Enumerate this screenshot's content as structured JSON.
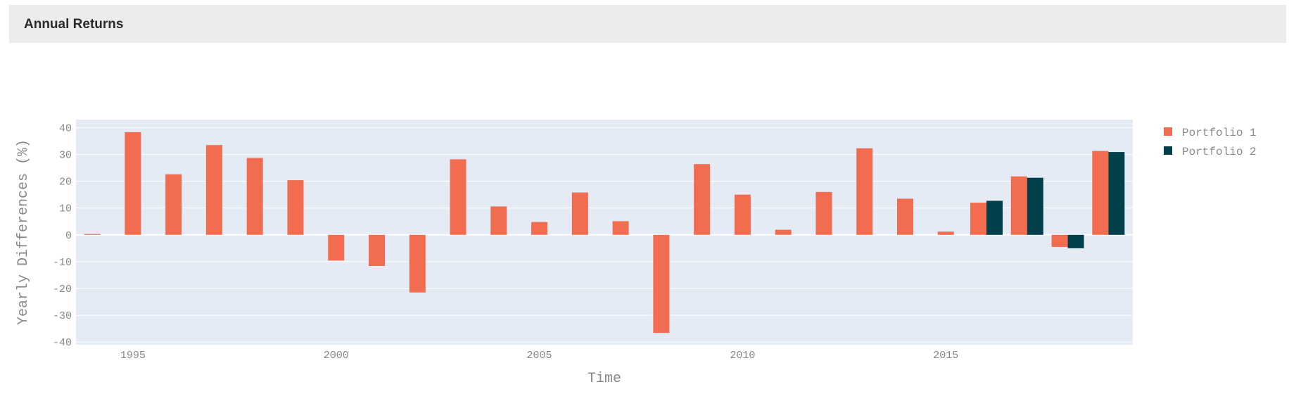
{
  "panel": {
    "title": "Annual Returns"
  },
  "colors": {
    "portfolio1": "#f26c4f",
    "portfolio2": "#02404c",
    "plot_bg": "#e5ebf5",
    "grid": "#ffffff",
    "axis_text": "#888888"
  },
  "chart_data": {
    "type": "bar",
    "title": "",
    "xlabel": "Time",
    "ylabel": "Yearly Differences (%)",
    "ylim": [
      -41,
      43
    ],
    "xlim": [
      1993.6,
      2019.6
    ],
    "yticks": [
      40,
      30,
      20,
      10,
      0,
      -10,
      -20,
      -30,
      -40
    ],
    "xticks": [
      1995,
      2000,
      2005,
      2010,
      2015
    ],
    "grid": true,
    "legend_position": "top-right",
    "categories": [
      1994,
      1995,
      1996,
      1997,
      1998,
      1999,
      2000,
      2001,
      2002,
      2003,
      2004,
      2005,
      2006,
      2007,
      2008,
      2009,
      2010,
      2011,
      2012,
      2013,
      2014,
      2015,
      2016,
      2017,
      2018,
      2019
    ],
    "series": [
      {
        "name": "Portfolio 1",
        "values": [
          0.3,
          38.3,
          22.6,
          33.5,
          28.7,
          20.4,
          -9.6,
          -11.6,
          -21.5,
          28.2,
          10.6,
          4.8,
          15.8,
          5.1,
          -36.6,
          26.4,
          15.0,
          1.9,
          16.0,
          32.3,
          13.5,
          1.2,
          12.0,
          21.8,
          -4.5,
          31.3
        ]
      },
      {
        "name": "Portfolio 2",
        "values": [
          null,
          null,
          null,
          null,
          null,
          null,
          null,
          null,
          null,
          null,
          null,
          null,
          null,
          null,
          null,
          null,
          null,
          null,
          null,
          null,
          null,
          null,
          12.7,
          21.3,
          -5.0,
          30.9
        ]
      }
    ]
  }
}
